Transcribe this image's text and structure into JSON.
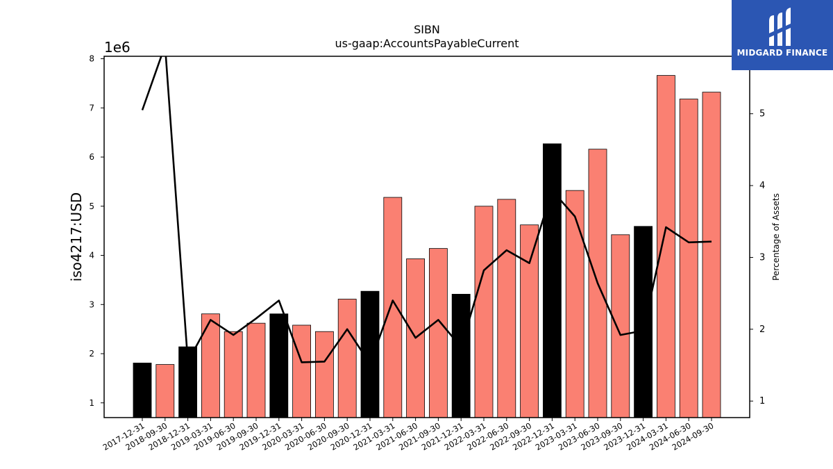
{
  "chart_data": {
    "type": "bar",
    "title": "SIBN",
    "subtitle": "us-gaap:AccountsPayableCurrent",
    "ylabel": "iso4217:USD",
    "y_offset_label": "1e6",
    "y2label": "Percentage of Assets",
    "ylim": [
      0.7,
      8.05
    ],
    "y2lim": [
      0.77,
      5.8
    ],
    "yticks": [
      1,
      2,
      3,
      4,
      5,
      6,
      7,
      8
    ],
    "y2ticks": [
      1,
      2,
      3,
      4,
      5
    ],
    "categories": [
      "2017-12-31",
      "2018-09-30",
      "2018-12-31",
      "2019-03-31",
      "2019-06-30",
      "2019-09-30",
      "2019-12-31",
      "2020-03-31",
      "2020-06-30",
      "2020-09-30",
      "2020-12-31",
      "2021-03-31",
      "2021-06-30",
      "2021-09-30",
      "2021-12-31",
      "2022-03-31",
      "2022-06-30",
      "2022-09-30",
      "2022-12-31",
      "2023-03-31",
      "2023-06-30",
      "2023-09-30",
      "2023-12-31",
      "2024-03-31",
      "2024-06-30",
      "2024-09-30"
    ],
    "values": [
      1.81,
      1.78,
      2.14,
      2.81,
      2.45,
      2.62,
      2.81,
      2.58,
      2.45,
      3.11,
      3.27,
      5.18,
      3.93,
      4.14,
      3.21,
      5.0,
      5.14,
      4.62,
      6.27,
      5.32,
      6.16,
      4.42,
      4.59,
      7.66,
      7.18,
      7.32
    ],
    "highlight": [
      true,
      false,
      true,
      false,
      false,
      false,
      true,
      false,
      false,
      false,
      true,
      false,
      false,
      false,
      true,
      false,
      false,
      false,
      true,
      false,
      false,
      false,
      true,
      false,
      false,
      false
    ],
    "line": {
      "name": "Percentage of Assets",
      "values": [
        5.05,
        5.95,
        1.55,
        2.13,
        1.92,
        2.15,
        2.4,
        1.54,
        1.55,
        2.0,
        1.52,
        2.4,
        1.88,
        2.13,
        1.75,
        2.82,
        3.1,
        2.92,
        3.93,
        3.57,
        2.64,
        1.92,
        1.98,
        3.42,
        3.21,
        3.22
      ]
    },
    "colors": {
      "bar": "#fa8072",
      "highlight": "#000000",
      "line": "#000000"
    },
    "grid": false,
    "legend": "none"
  },
  "logo": {
    "name": "MIDGARD FINANCE",
    "icon": "midgard-m-icon",
    "color": "#2b56b3"
  }
}
